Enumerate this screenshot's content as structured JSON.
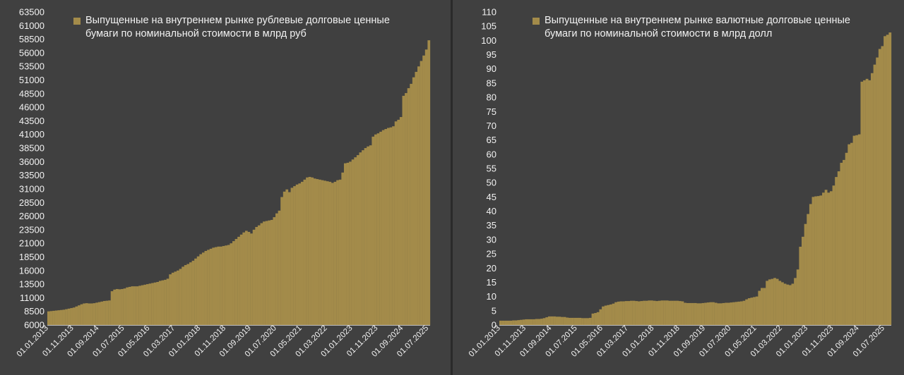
{
  "colors": {
    "bar": "#a38b4a",
    "bar_edge": "#8c7638",
    "axis": "#bfbfbf",
    "text": "#f2f2f2",
    "panel_bg": "#404040"
  },
  "chart_data": [
    {
      "type": "bar",
      "title": "",
      "legend": "Выпущенные на внутреннем рынке рублевые долговые ценные бумаги по номинальной стоимости в млрд руб",
      "legend_position": "top-left",
      "grid": false,
      "ylim": [
        6000,
        63500
      ],
      "y_ticks": [
        "6000",
        "8500",
        "11000",
        "13500",
        "16000",
        "18500",
        "21000",
        "23500",
        "26000",
        "28500",
        "31000",
        "33500",
        "36000",
        "38500",
        "41000",
        "43500",
        "46000",
        "48500",
        "51000",
        "53500",
        "56000",
        "58500",
        "61000",
        "63500"
      ],
      "x_tick_labels": [
        "01.01.2013",
        "01.11.2013",
        "01.09.2014",
        "01.07.2015",
        "01.05.2016",
        "01.03.2017",
        "01.01.2018",
        "01.11.2018",
        "01.09.2019",
        "01.07.2020",
        "01.05.2021",
        "01.03.2022",
        "01.01.2023",
        "01.11.2023",
        "01.09.2024",
        "01.07.2025"
      ],
      "x_start": "01.01.2013",
      "x_freq": "monthly",
      "values": [
        8500,
        8550,
        8600,
        8650,
        8700,
        8750,
        8800,
        8900,
        9000,
        9100,
        9200,
        9400,
        9600,
        9800,
        9950,
        10000,
        9950,
        9950,
        10000,
        10100,
        10200,
        10300,
        10400,
        10450,
        10500,
        12200,
        12500,
        12600,
        12550,
        12600,
        12700,
        12900,
        13000,
        13100,
        13100,
        13100,
        13200,
        13300,
        13400,
        13500,
        13600,
        13700,
        13800,
        13900,
        14100,
        14200,
        14300,
        14500,
        15300,
        15600,
        15800,
        16000,
        16300,
        16700,
        17000,
        17200,
        17500,
        17800,
        18200,
        18600,
        19000,
        19300,
        19600,
        19800,
        20000,
        20200,
        20300,
        20400,
        20400,
        20500,
        20600,
        20700,
        21000,
        21400,
        21800,
        22200,
        22600,
        23000,
        23300,
        23100,
        22800,
        23500,
        24000,
        24300,
        24700,
        25000,
        25100,
        25200,
        25300,
        25800,
        26500,
        27000,
        29500,
        30500,
        30900,
        30400,
        31200,
        31500,
        31800,
        32000,
        32300,
        32700,
        33100,
        33200,
        33100,
        32900,
        32800,
        32700,
        32600,
        32500,
        32400,
        32300,
        32100,
        32300,
        32600,
        32700,
        34000,
        35700,
        35800,
        36000,
        36400,
        36800,
        37200,
        37700,
        38100,
        38500,
        38800,
        39000,
        40600,
        41000,
        41200,
        41500,
        41800,
        42000,
        42200,
        42300,
        42500,
        43400,
        43700,
        44200,
        48100,
        48600,
        49500,
        50300,
        51500,
        52500,
        53500,
        54500,
        55500,
        56600,
        58300
      ]
    },
    {
      "type": "bar",
      "title": "",
      "legend": "Выпущенные на внутреннем рынке валютные долговые ценные бумаги по номинальной стоимости в млрд долл",
      "legend_position": "top-left",
      "grid": false,
      "ylim": [
        0,
        110
      ],
      "y_ticks": [
        "0",
        "5",
        "10",
        "15",
        "20",
        "25",
        "30",
        "35",
        "40",
        "45",
        "50",
        "55",
        "60",
        "65",
        "70",
        "75",
        "80",
        "85",
        "90",
        "95",
        "100",
        "105",
        "110"
      ],
      "x_tick_labels": [
        "01.01.2013",
        "01.11.2013",
        "01.09.2014",
        "01.07.2015",
        "01.05.2016",
        "01.03.2017",
        "01.01.2018",
        "01.11.2018",
        "01.09.2019",
        "01.07.2020",
        "01.05.2021",
        "01.03.2022",
        "01.01.2023",
        "01.11.2023",
        "01.09.2024",
        "01.07.2025"
      ],
      "x_start": "01.01.2013",
      "x_freq": "monthly",
      "values": [
        1.5,
        1.5,
        1.5,
        1.5,
        1.5,
        1.6,
        1.6,
        1.7,
        1.8,
        1.9,
        2.0,
        2.0,
        2.0,
        2.0,
        2.1,
        2.1,
        2.2,
        2.4,
        2.7,
        3.0,
        3.0,
        3.0,
        2.9,
        2.9,
        2.8,
        2.8,
        2.6,
        2.5,
        2.5,
        2.5,
        2.5,
        2.5,
        2.4,
        2.4,
        2.4,
        2.5,
        4.0,
        4.2,
        4.5,
        5.5,
        6.5,
        6.8,
        7.0,
        7.2,
        7.5,
        8.0,
        8.2,
        8.3,
        8.3,
        8.4,
        8.4,
        8.5,
        8.5,
        8.4,
        8.3,
        8.4,
        8.5,
        8.5,
        8.6,
        8.6,
        8.5,
        8.4,
        8.5,
        8.6,
        8.6,
        8.6,
        8.5,
        8.5,
        8.5,
        8.5,
        8.4,
        8.3,
        7.8,
        7.7,
        7.7,
        7.7,
        7.7,
        7.6,
        7.6,
        7.7,
        7.8,
        7.9,
        8.0,
        8.0,
        7.8,
        7.6,
        7.6,
        7.7,
        7.8,
        7.8,
        7.9,
        8.0,
        8.1,
        8.2,
        8.3,
        8.5,
        9.0,
        9.4,
        9.6,
        9.8,
        10.0,
        12.0,
        13.0,
        13.0,
        15.5,
        16.0,
        16.2,
        16.5,
        16.2,
        15.5,
        15.0,
        14.5,
        14.2,
        14.0,
        14.5,
        16.5,
        19.5,
        27.5,
        31.0,
        35.5,
        39.0,
        42.5,
        45.0,
        45.2,
        45.3,
        45.5,
        46.5,
        47.5,
        46.5,
        47.0,
        49.0,
        52.0,
        54.0,
        57.0,
        58.0,
        60.5,
        63.5,
        64.0,
        66.5,
        66.7,
        67.0,
        85.5,
        86.0,
        86.5,
        86.0,
        88.5,
        91.5,
        94.0,
        97.0,
        98.0,
        101.5,
        102.0,
        102.8
      ]
    }
  ]
}
